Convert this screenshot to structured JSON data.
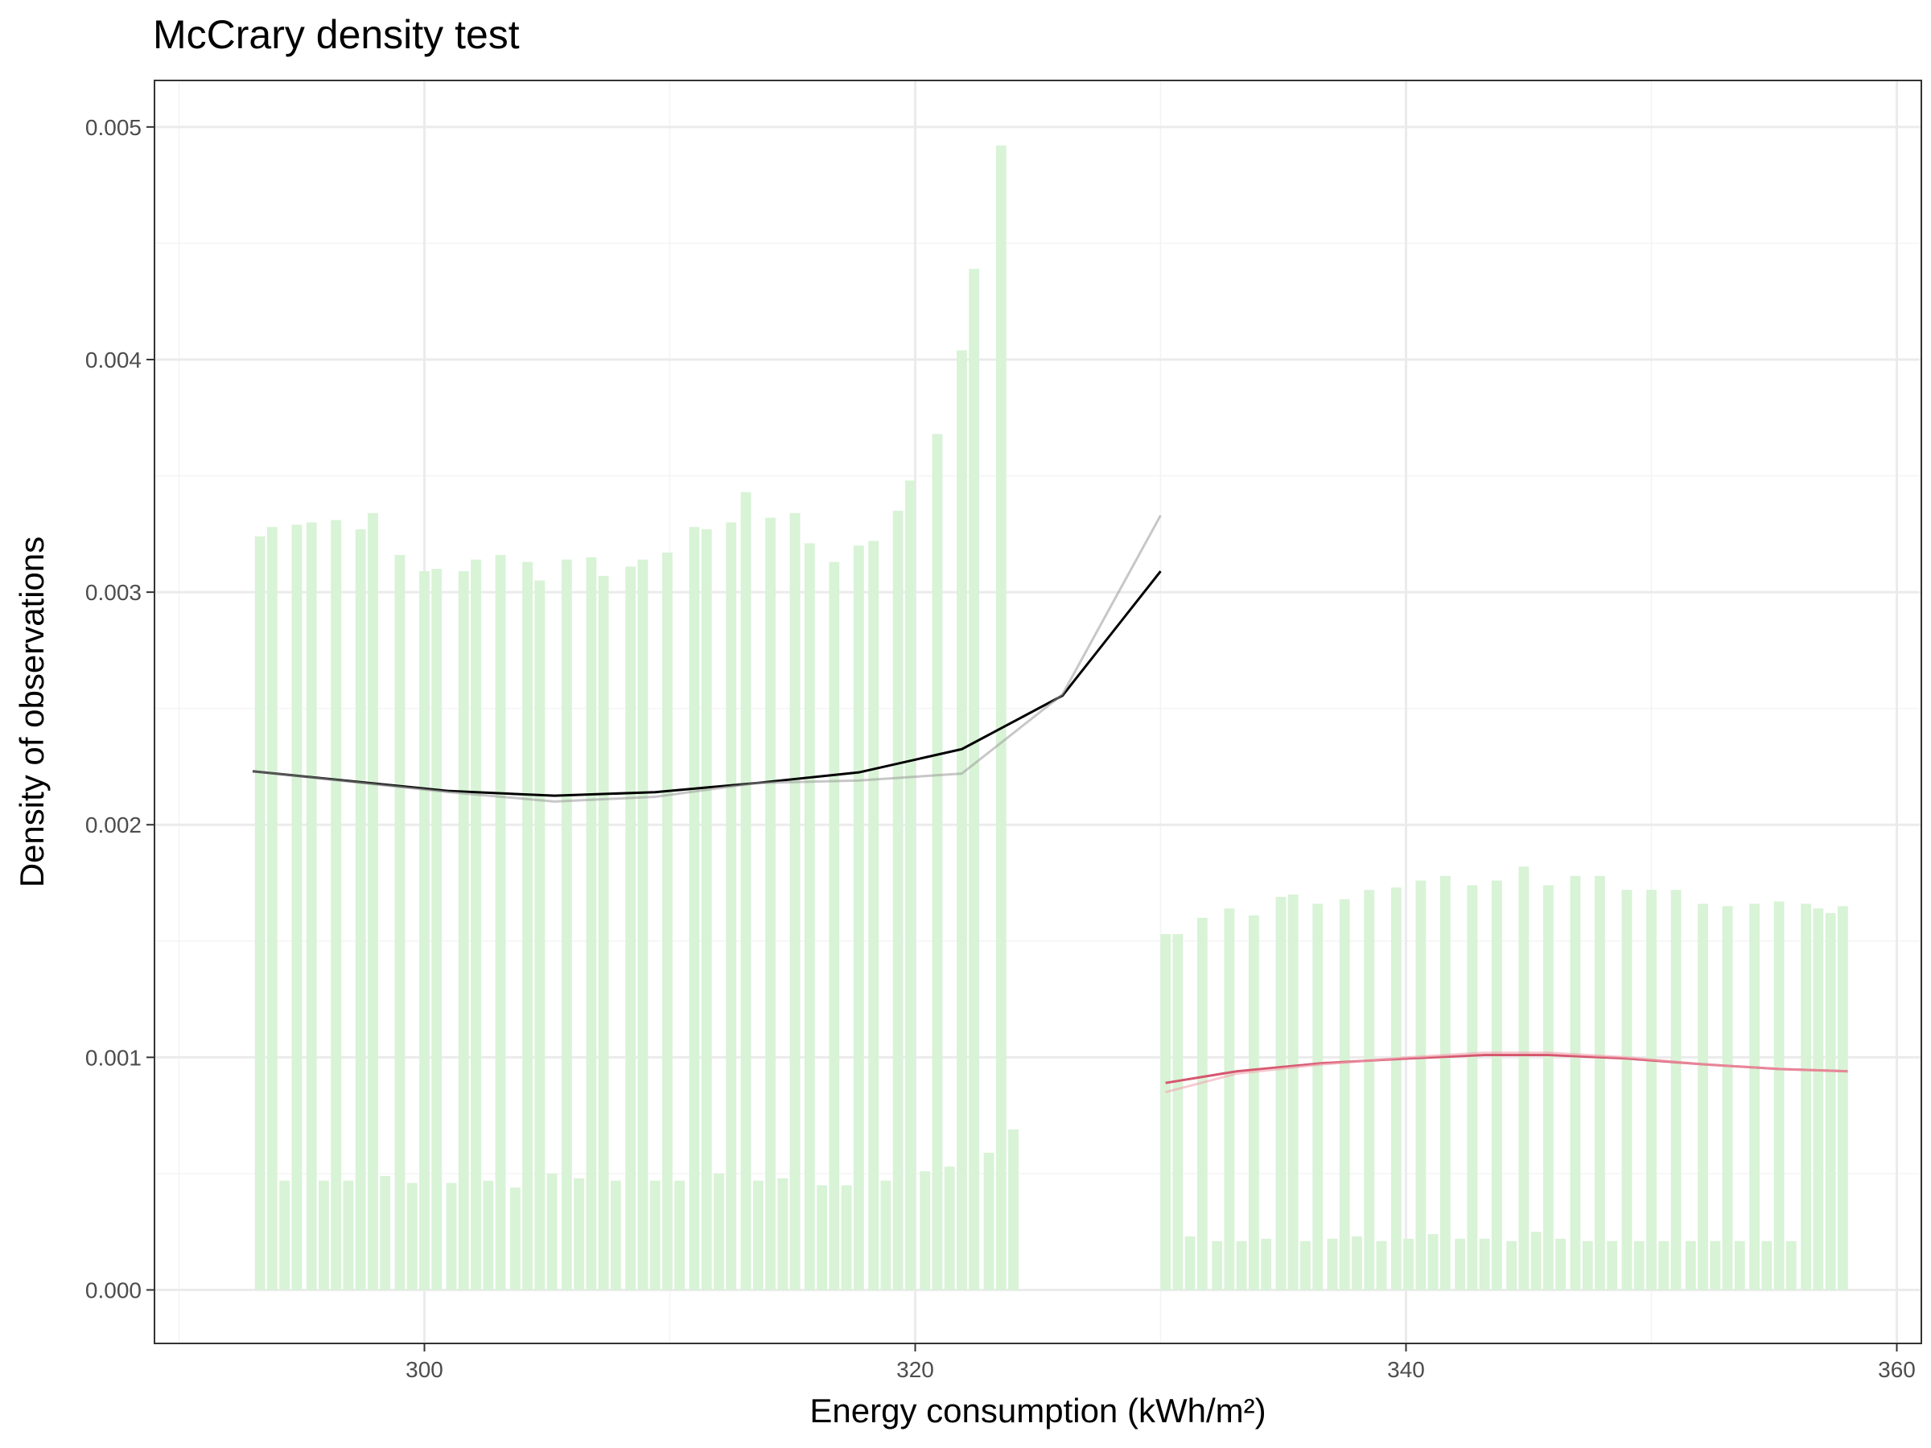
{
  "chart_data": {
    "type": "bar",
    "title": "McCrary density test",
    "xlabel": "Energy consumption (kWh/m²)",
    "ylabel": "Density of observations",
    "xlim": [
      289,
      361
    ],
    "ylim": [
      -0.00023,
      0.0052
    ],
    "x_ticks": [
      300,
      320,
      340,
      360
    ],
    "x_tick_labels": [
      "300",
      "320",
      "340",
      "360"
    ],
    "y_ticks": [
      0,
      0.001,
      0.002,
      0.003,
      0.004,
      0.005
    ],
    "y_tick_labels": [
      "0.000",
      "0.001",
      "0.002",
      "0.003",
      "0.004",
      "0.005"
    ],
    "grid": true,
    "cutoff": 330,
    "bar_width": 0.42,
    "bar_color": "#d8f3d6",
    "bars": [
      [
        293.3,
        0.00324
      ],
      [
        293.8,
        0.00328
      ],
      [
        294.3,
        0.00047
      ],
      [
        294.8,
        0.00329
      ],
      [
        295.4,
        0.0033
      ],
      [
        295.9,
        0.00047
      ],
      [
        296.4,
        0.00331
      ],
      [
        296.9,
        0.00047
      ],
      [
        297.4,
        0.00327
      ],
      [
        297.9,
        0.00334
      ],
      [
        298.4,
        0.00049
      ],
      [
        299.0,
        0.00316
      ],
      [
        299.5,
        0.00046
      ],
      [
        300.0,
        0.00309
      ],
      [
        300.5,
        0.0031
      ],
      [
        301.1,
        0.00046
      ],
      [
        301.6,
        0.00309
      ],
      [
        302.1,
        0.00314
      ],
      [
        302.6,
        0.00047
      ],
      [
        303.1,
        0.00316
      ],
      [
        303.7,
        0.00044
      ],
      [
        304.2,
        0.00313
      ],
      [
        304.7,
        0.00305
      ],
      [
        305.2,
        0.0005
      ],
      [
        305.8,
        0.00314
      ],
      [
        306.3,
        0.00048
      ],
      [
        306.8,
        0.00315
      ],
      [
        307.3,
        0.00307
      ],
      [
        307.8,
        0.00047
      ],
      [
        308.4,
        0.00311
      ],
      [
        308.9,
        0.00314
      ],
      [
        309.4,
        0.00047
      ],
      [
        309.9,
        0.00317
      ],
      [
        310.4,
        0.00047
      ],
      [
        311.0,
        0.00328
      ],
      [
        311.5,
        0.00327
      ],
      [
        312.0,
        0.0005
      ],
      [
        312.5,
        0.0033
      ],
      [
        313.1,
        0.00343
      ],
      [
        313.6,
        0.00047
      ],
      [
        314.1,
        0.00332
      ],
      [
        314.6,
        0.00048
      ],
      [
        315.1,
        0.00334
      ],
      [
        315.7,
        0.00321
      ],
      [
        316.2,
        0.00045
      ],
      [
        316.7,
        0.00313
      ],
      [
        317.2,
        0.00045
      ],
      [
        317.7,
        0.0032
      ],
      [
        318.3,
        0.00322
      ],
      [
        318.8,
        0.00047
      ],
      [
        319.3,
        0.00335
      ],
      [
        319.8,
        0.00348
      ],
      [
        320.4,
        0.00051
      ],
      [
        320.9,
        0.00368
      ],
      [
        321.4,
        0.00053
      ],
      [
        321.9,
        0.00404
      ],
      [
        322.4,
        0.00439
      ],
      [
        323.0,
        0.00059
      ],
      [
        323.5,
        0.00492
      ],
      [
        324.0,
        0.00069
      ],
      [
        330.2,
        0.00153
      ],
      [
        330.7,
        0.00153
      ],
      [
        331.2,
        0.00023
      ],
      [
        331.7,
        0.0016
      ],
      [
        332.3,
        0.00021
      ],
      [
        332.8,
        0.00164
      ],
      [
        333.3,
        0.00021
      ],
      [
        333.8,
        0.00161
      ],
      [
        334.3,
        0.00022
      ],
      [
        334.9,
        0.00169
      ],
      [
        335.4,
        0.0017
      ],
      [
        335.9,
        0.00021
      ],
      [
        336.4,
        0.00166
      ],
      [
        337.0,
        0.00022
      ],
      [
        337.5,
        0.00168
      ],
      [
        338.0,
        0.00023
      ],
      [
        338.5,
        0.00172
      ],
      [
        339.0,
        0.00021
      ],
      [
        339.6,
        0.00173
      ],
      [
        340.1,
        0.00022
      ],
      [
        340.6,
        0.00176
      ],
      [
        341.1,
        0.00024
      ],
      [
        341.6,
        0.00178
      ],
      [
        342.2,
        0.00022
      ],
      [
        342.7,
        0.00174
      ],
      [
        343.2,
        0.00022
      ],
      [
        343.7,
        0.00176
      ],
      [
        344.3,
        0.00021
      ],
      [
        344.8,
        0.00182
      ],
      [
        345.3,
        0.00025
      ],
      [
        345.8,
        0.00174
      ],
      [
        346.3,
        0.00022
      ],
      [
        346.9,
        0.00178
      ],
      [
        347.4,
        0.00021
      ],
      [
        347.9,
        0.00178
      ],
      [
        348.4,
        0.00021
      ],
      [
        349.0,
        0.00172
      ],
      [
        349.5,
        0.00021
      ],
      [
        350.0,
        0.00172
      ],
      [
        350.5,
        0.00021
      ],
      [
        351.0,
        0.00172
      ],
      [
        351.6,
        0.00021
      ],
      [
        352.1,
        0.00166
      ],
      [
        352.6,
        0.00021
      ],
      [
        353.1,
        0.00165
      ],
      [
        353.6,
        0.00021
      ],
      [
        354.2,
        0.00166
      ],
      [
        354.7,
        0.00021
      ],
      [
        355.2,
        0.00167
      ],
      [
        355.7,
        0.00021
      ],
      [
        356.3,
        0.00166
      ],
      [
        356.8,
        0.00164
      ],
      [
        357.3,
        0.00162
      ],
      [
        357.8,
        0.00165
      ]
    ],
    "series": [
      {
        "color": "#000000",
        "points": [
          [
            293,
            0.00223
          ],
          [
            301,
            0.002145
          ],
          [
            305.3,
            0.002125
          ],
          [
            309.4,
            0.00214
          ],
          [
            313.6,
            0.00218
          ],
          [
            317.7,
            0.002225
          ],
          [
            321.9,
            0.002325
          ],
          [
            326,
            0.002555
          ],
          [
            330,
            0.00309
          ]
        ]
      },
      {
        "color": "#999999",
        "opacity": 0.55,
        "points": [
          [
            293,
            0.00223
          ],
          [
            301,
            0.00214
          ],
          [
            305.3,
            0.0021
          ],
          [
            309.4,
            0.00212
          ],
          [
            313.6,
            0.00218
          ],
          [
            317.7,
            0.00219
          ],
          [
            321.9,
            0.00222
          ],
          [
            326,
            0.00256
          ],
          [
            330,
            0.00333
          ]
        ]
      },
      {
        "color": "#d6566e",
        "points": [
          [
            330.2,
            0.00089
          ],
          [
            333.1,
            0.00094
          ],
          [
            336.6,
            0.000975
          ],
          [
            340.1,
            0.000995
          ],
          [
            343.2,
            0.00101
          ],
          [
            345.8,
            0.00101
          ],
          [
            349,
            0.000995
          ],
          [
            352.1,
            0.00097
          ],
          [
            355.2,
            0.00095
          ],
          [
            358,
            0.00094
          ]
        ]
      },
      {
        "color": "#f2a6b3",
        "opacity": 0.6,
        "points": [
          [
            330.2,
            0.00085
          ],
          [
            333.1,
            0.00093
          ],
          [
            336.6,
            0.00097
          ],
          [
            340.1,
            0.001
          ],
          [
            343.2,
            0.00102
          ],
          [
            345.8,
            0.00102
          ],
          [
            349,
            0.001
          ],
          [
            352.1,
            0.00097
          ],
          [
            355.2,
            0.00095
          ],
          [
            358,
            0.00094
          ]
        ]
      }
    ]
  },
  "colors": {
    "background": "#ffffff",
    "panel_border": "#333333",
    "grid_major": "#ebebeb",
    "grid_minor": "#f4f4f4"
  }
}
